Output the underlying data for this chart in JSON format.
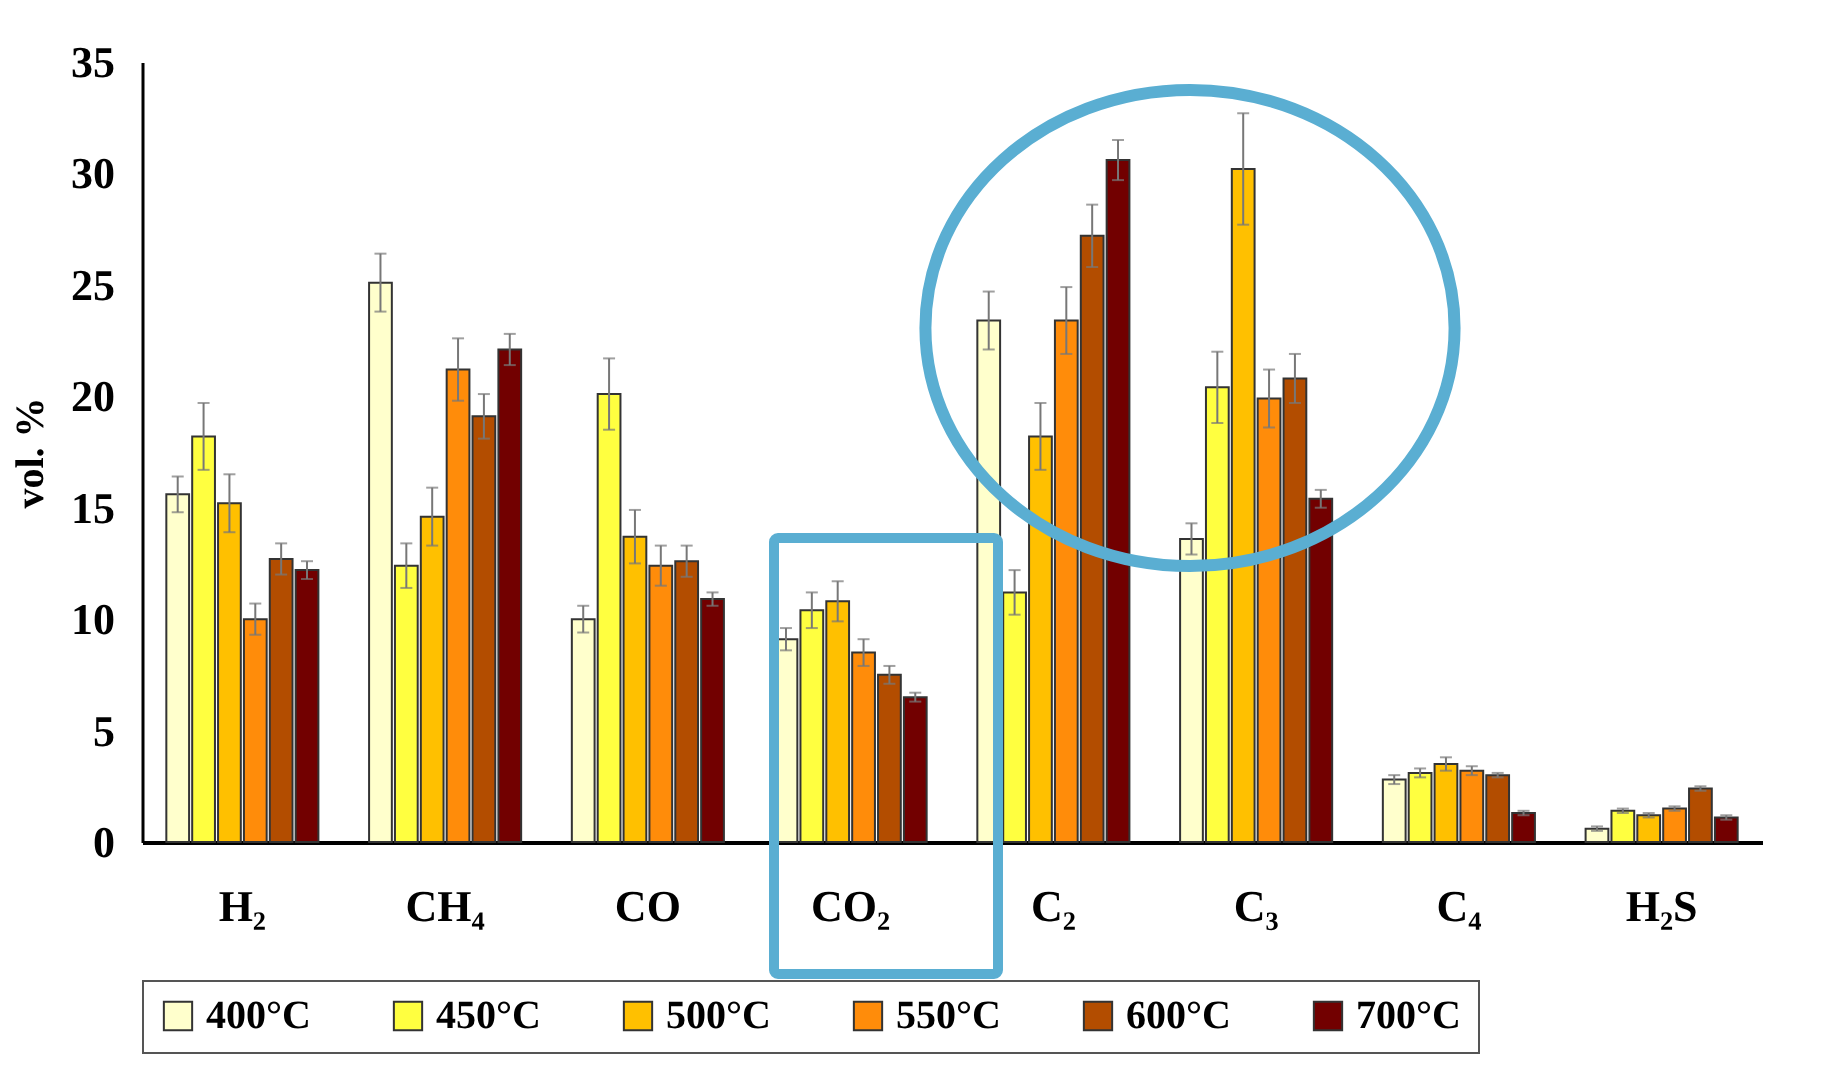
{
  "chart_data": {
    "type": "bar",
    "ylabel": "vol. %",
    "categories": [
      "H₂",
      "CH₄",
      "CO",
      "CO₂",
      "C₂",
      "C₃",
      "C₄",
      "H₂S"
    ],
    "ylim": [
      0,
      35
    ],
    "yticks": [
      0,
      5,
      10,
      15,
      20,
      25,
      30,
      35
    ],
    "grid": false,
    "legend": "bottom",
    "series": [
      {
        "name": "400°C",
        "color": "#ffffcc",
        "values": [
          15.6,
          25.1,
          10.0,
          9.1,
          23.4,
          13.6,
          2.8,
          0.6
        ],
        "errors": [
          0.8,
          1.3,
          0.6,
          0.5,
          1.3,
          0.7,
          0.2,
          0.1
        ]
      },
      {
        "name": "450°C",
        "color": "#ffff40",
        "values": [
          18.2,
          12.4,
          20.1,
          10.4,
          11.2,
          20.4,
          3.1,
          1.4
        ],
        "errors": [
          1.5,
          1.0,
          1.6,
          0.8,
          1.0,
          1.6,
          0.2,
          0.1
        ]
      },
      {
        "name": "500°C",
        "color": "#ffc000",
        "values": [
          15.2,
          14.6,
          13.7,
          10.8,
          18.2,
          30.2,
          3.5,
          1.2
        ],
        "errors": [
          1.3,
          1.3,
          1.2,
          0.9,
          1.5,
          2.5,
          0.3,
          0.1
        ]
      },
      {
        "name": "550°C",
        "color": "#ff8c0a",
        "values": [
          10.0,
          21.2,
          12.4,
          8.5,
          23.4,
          19.9,
          3.2,
          1.5
        ],
        "errors": [
          0.7,
          1.4,
          0.9,
          0.6,
          1.5,
          1.3,
          0.2,
          0.1
        ]
      },
      {
        "name": "600°C",
        "color": "#b34d00",
        "values": [
          12.7,
          19.1,
          12.6,
          7.5,
          27.2,
          20.8,
          3.0,
          2.4
        ],
        "errors": [
          0.7,
          1.0,
          0.7,
          0.4,
          1.4,
          1.1,
          0.1,
          0.1
        ]
      },
      {
        "name": "700°C",
        "color": "#720000",
        "values": [
          12.2,
          22.1,
          10.9,
          6.5,
          30.6,
          15.4,
          1.3,
          1.1
        ],
        "errors": [
          0.4,
          0.7,
          0.3,
          0.2,
          0.9,
          0.4,
          0.1,
          0.1
        ]
      }
    ]
  }
}
